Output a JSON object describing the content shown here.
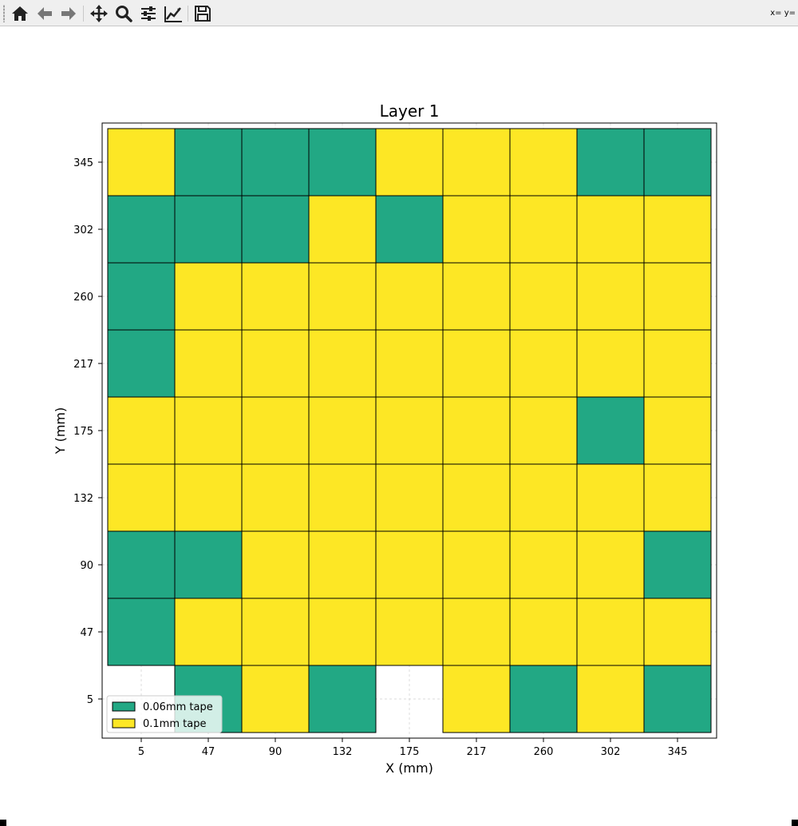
{
  "toolbar": {
    "buttons": [
      {
        "name": "home-icon",
        "title": "Home"
      },
      {
        "name": "back-icon",
        "title": "Back"
      },
      {
        "name": "forward-icon",
        "title": "Forward"
      },
      {
        "name": "pan-icon",
        "title": "Pan"
      },
      {
        "name": "zoom-icon",
        "title": "Zoom"
      },
      {
        "name": "configure-subplots-icon",
        "title": "Subplots"
      },
      {
        "name": "edit-axis-icon",
        "title": "Customize"
      },
      {
        "name": "save-icon",
        "title": "Save"
      }
    ],
    "coords_text": "x= y="
  },
  "colors": {
    "tape_006": "#22a884",
    "tape_01": "#fde725",
    "grid": "#d0d0d0",
    "edge": "#000000"
  },
  "chart_data": {
    "type": "heatmap",
    "title": "Layer 1",
    "xlabel": "X (mm)",
    "ylabel": "Y (mm)",
    "x_ticks": [
      "5",
      "47",
      "90",
      "132",
      "175",
      "217",
      "260",
      "302",
      "345"
    ],
    "y_ticks": [
      "5",
      "47",
      "90",
      "132",
      "175",
      "217",
      "260",
      "302",
      "345"
    ],
    "grid": true,
    "legend": {
      "placement": "lower-left",
      "entries": [
        {
          "label": "0.06mm tape",
          "value": 1
        },
        {
          "label": "0.1mm tape",
          "value": 2
        }
      ]
    },
    "cell_values_note": "",
    "rows_top_to_bottom": [
      [
        2,
        1,
        1,
        1,
        2,
        2,
        2,
        1,
        1
      ],
      [
        1,
        1,
        1,
        2,
        1,
        2,
        2,
        2,
        2
      ],
      [
        1,
        2,
        2,
        2,
        2,
        2,
        2,
        2,
        2
      ],
      [
        1,
        2,
        2,
        2,
        2,
        2,
        2,
        2,
        2
      ],
      [
        2,
        2,
        2,
        2,
        2,
        2,
        2,
        1,
        2
      ],
      [
        2,
        2,
        2,
        2,
        2,
        2,
        2,
        2,
        2
      ],
      [
        1,
        1,
        2,
        2,
        2,
        2,
        2,
        2,
        1
      ],
      [
        1,
        2,
        2,
        2,
        2,
        2,
        2,
        2,
        2
      ],
      [
        0,
        1,
        2,
        1,
        0,
        2,
        1,
        2,
        1
      ]
    ]
  }
}
